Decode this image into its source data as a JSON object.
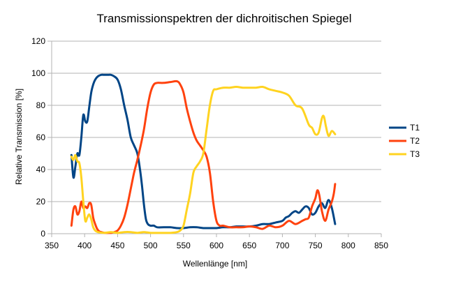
{
  "chart_data": {
    "type": "line",
    "title": "Transmissionspektren der dichroitischen Spiegel",
    "xlabel": "Wellenlänge [nm]",
    "ylabel": "Relative Transmission [%]",
    "xlim": [
      350,
      850
    ],
    "ylim": [
      0,
      120
    ],
    "xticks": [
      "350",
      "400",
      "450",
      "500",
      "550",
      "600",
      "650",
      "700",
      "750",
      "800",
      "850"
    ],
    "yticks": [
      "0",
      "20",
      "40",
      "60",
      "80",
      "100",
      "120"
    ],
    "grid": true,
    "legend_position": "right",
    "series": [
      {
        "name": "T1",
        "color": "#004586",
        "points": [
          [
            380,
            49
          ],
          [
            383,
            35
          ],
          [
            386,
            42
          ],
          [
            389,
            50
          ],
          [
            392,
            49
          ],
          [
            395,
            60
          ],
          [
            398,
            74
          ],
          [
            401,
            70
          ],
          [
            404,
            70
          ],
          [
            407,
            79
          ],
          [
            410,
            88
          ],
          [
            413,
            93
          ],
          [
            416,
            96
          ],
          [
            420,
            98
          ],
          [
            425,
            99
          ],
          [
            430,
            99
          ],
          [
            435,
            99
          ],
          [
            440,
            99
          ],
          [
            445,
            98
          ],
          [
            450,
            96
          ],
          [
            455,
            90
          ],
          [
            460,
            80
          ],
          [
            465,
            71
          ],
          [
            470,
            60
          ],
          [
            475,
            55
          ],
          [
            480,
            50
          ],
          [
            484,
            40
          ],
          [
            487,
            30
          ],
          [
            490,
            18
          ],
          [
            493,
            9
          ],
          [
            496,
            6
          ],
          [
            500,
            5
          ],
          [
            505,
            5
          ],
          [
            510,
            4
          ],
          [
            520,
            4
          ],
          [
            530,
            4
          ],
          [
            540,
            3.5
          ],
          [
            550,
            3.5
          ],
          [
            560,
            4
          ],
          [
            570,
            4
          ],
          [
            580,
            3.5
          ],
          [
            590,
            3.5
          ],
          [
            600,
            3.5
          ],
          [
            610,
            4
          ],
          [
            620,
            4
          ],
          [
            630,
            4.5
          ],
          [
            640,
            4.5
          ],
          [
            650,
            4.5
          ],
          [
            660,
            5
          ],
          [
            670,
            6
          ],
          [
            680,
            6
          ],
          [
            690,
            7
          ],
          [
            700,
            8
          ],
          [
            705,
            10
          ],
          [
            710,
            11
          ],
          [
            715,
            13
          ],
          [
            720,
            14
          ],
          [
            725,
            13
          ],
          [
            730,
            15
          ],
          [
            735,
            17
          ],
          [
            740,
            16
          ],
          [
            745,
            12
          ],
          [
            750,
            13
          ],
          [
            755,
            17
          ],
          [
            760,
            19
          ],
          [
            765,
            16
          ],
          [
            770,
            21
          ],
          [
            775,
            16
          ],
          [
            780,
            6
          ]
        ]
      },
      {
        "name": "T2",
        "color": "#ff420e",
        "points": [
          [
            380,
            5
          ],
          [
            383,
            15
          ],
          [
            386,
            17
          ],
          [
            389,
            12
          ],
          [
            392,
            14
          ],
          [
            395,
            20
          ],
          [
            398,
            16
          ],
          [
            401,
            17
          ],
          [
            404,
            16
          ],
          [
            407,
            19
          ],
          [
            410,
            18
          ],
          [
            413,
            10
          ],
          [
            416,
            6
          ],
          [
            419,
            3
          ],
          [
            422,
            1.5
          ],
          [
            425,
            1
          ],
          [
            430,
            0.5
          ],
          [
            435,
            0.5
          ],
          [
            440,
            0.5
          ],
          [
            445,
            1
          ],
          [
            450,
            2
          ],
          [
            455,
            5
          ],
          [
            460,
            10
          ],
          [
            465,
            18
          ],
          [
            470,
            28
          ],
          [
            475,
            38
          ],
          [
            480,
            46
          ],
          [
            485,
            55
          ],
          [
            490,
            65
          ],
          [
            495,
            78
          ],
          [
            500,
            88
          ],
          [
            505,
            93
          ],
          [
            510,
            94
          ],
          [
            515,
            94
          ],
          [
            520,
            94
          ],
          [
            530,
            94.5
          ],
          [
            540,
            95
          ],
          [
            545,
            93
          ],
          [
            550,
            88
          ],
          [
            555,
            78
          ],
          [
            560,
            70
          ],
          [
            565,
            63
          ],
          [
            570,
            58
          ],
          [
            575,
            55
          ],
          [
            580,
            52
          ],
          [
            585,
            48
          ],
          [
            590,
            38
          ],
          [
            595,
            20
          ],
          [
            600,
            8
          ],
          [
            605,
            5
          ],
          [
            610,
            5
          ],
          [
            620,
            4
          ],
          [
            630,
            4
          ],
          [
            640,
            4
          ],
          [
            650,
            4.5
          ],
          [
            660,
            4
          ],
          [
            670,
            3
          ],
          [
            680,
            5
          ],
          [
            690,
            4
          ],
          [
            700,
            5
          ],
          [
            710,
            8
          ],
          [
            720,
            6
          ],
          [
            730,
            8
          ],
          [
            735,
            9
          ],
          [
            740,
            10
          ],
          [
            745,
            17
          ],
          [
            750,
            22
          ],
          [
            753,
            27
          ],
          [
            756,
            24
          ],
          [
            760,
            14
          ],
          [
            765,
            8
          ],
          [
            770,
            15
          ],
          [
            775,
            20
          ],
          [
            778,
            25
          ],
          [
            780,
            31
          ]
        ]
      },
      {
        "name": "T3",
        "color": "#ffd320",
        "points": [
          [
            380,
            48
          ],
          [
            383,
            46
          ],
          [
            386,
            49
          ],
          [
            389,
            45
          ],
          [
            392,
            44
          ],
          [
            395,
            35
          ],
          [
            398,
            20
          ],
          [
            401,
            8
          ],
          [
            404,
            10
          ],
          [
            407,
            12
          ],
          [
            410,
            9
          ],
          [
            413,
            4
          ],
          [
            416,
            2
          ],
          [
            420,
            1
          ],
          [
            430,
            0.5
          ],
          [
            440,
            1
          ],
          [
            450,
            0.5
          ],
          [
            460,
            1
          ],
          [
            470,
            1
          ],
          [
            480,
            0.5
          ],
          [
            490,
            1
          ],
          [
            500,
            0.5
          ],
          [
            510,
            0.5
          ],
          [
            520,
            0.5
          ],
          [
            530,
            0.5
          ],
          [
            540,
            1
          ],
          [
            545,
            2
          ],
          [
            550,
            5
          ],
          [
            555,
            15
          ],
          [
            560,
            25
          ],
          [
            565,
            38
          ],
          [
            570,
            42
          ],
          [
            575,
            45
          ],
          [
            580,
            50
          ],
          [
            585,
            65
          ],
          [
            590,
            80
          ],
          [
            595,
            89
          ],
          [
            600,
            90
          ],
          [
            610,
            91
          ],
          [
            620,
            91
          ],
          [
            630,
            91.5
          ],
          [
            640,
            91
          ],
          [
            650,
            91
          ],
          [
            660,
            91
          ],
          [
            670,
            91.5
          ],
          [
            680,
            90
          ],
          [
            690,
            89
          ],
          [
            700,
            88
          ],
          [
            710,
            86
          ],
          [
            720,
            80
          ],
          [
            730,
            78
          ],
          [
            740,
            68
          ],
          [
            745,
            66
          ],
          [
            750,
            62
          ],
          [
            755,
            63
          ],
          [
            760,
            72
          ],
          [
            763,
            73
          ],
          [
            766,
            67
          ],
          [
            770,
            61
          ],
          [
            775,
            64
          ],
          [
            780,
            62
          ]
        ]
      }
    ]
  }
}
